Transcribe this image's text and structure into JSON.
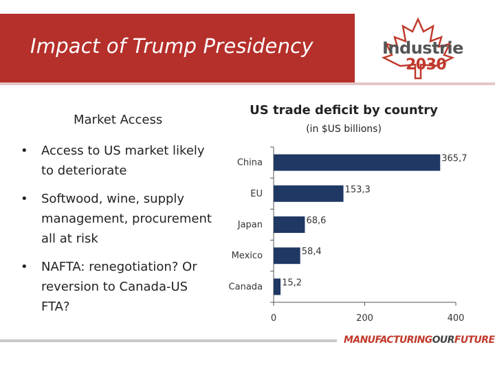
{
  "header": {
    "title": "Impact of Trump Presidency",
    "logo_word": "Industrie",
    "logo_year": "2030"
  },
  "left": {
    "heading": "Market Access",
    "bullets": [
      "Access to US market likely to deteriorate",
      "Softwood, wine, supply management, procurement all at risk",
      "NAFTA: renegotiation? Or reversion to Canada-US FTA?"
    ]
  },
  "chart_data": {
    "type": "bar",
    "orientation": "horizontal",
    "title": "US trade deficit by country",
    "subtitle": "(in $US billions)",
    "categories": [
      "China",
      "EU",
      "Japan",
      "Mexico",
      "Canada"
    ],
    "values": [
      365.7,
      153.3,
      68.6,
      58.4,
      15.2
    ],
    "value_labels": [
      "365,7",
      "153,3",
      "68,6",
      "58,4",
      "15,2"
    ],
    "xlim": [
      0,
      400
    ],
    "xticks": [
      0,
      200,
      400
    ],
    "bar_color": "#1f3864",
    "grid": false
  },
  "footer": {
    "brand_part1": "MANUFACTURING",
    "brand_part2": "OUR",
    "brand_part3": "FUTURE"
  },
  "colors": {
    "header": "#b5302b",
    "accent": "#c0392b"
  }
}
